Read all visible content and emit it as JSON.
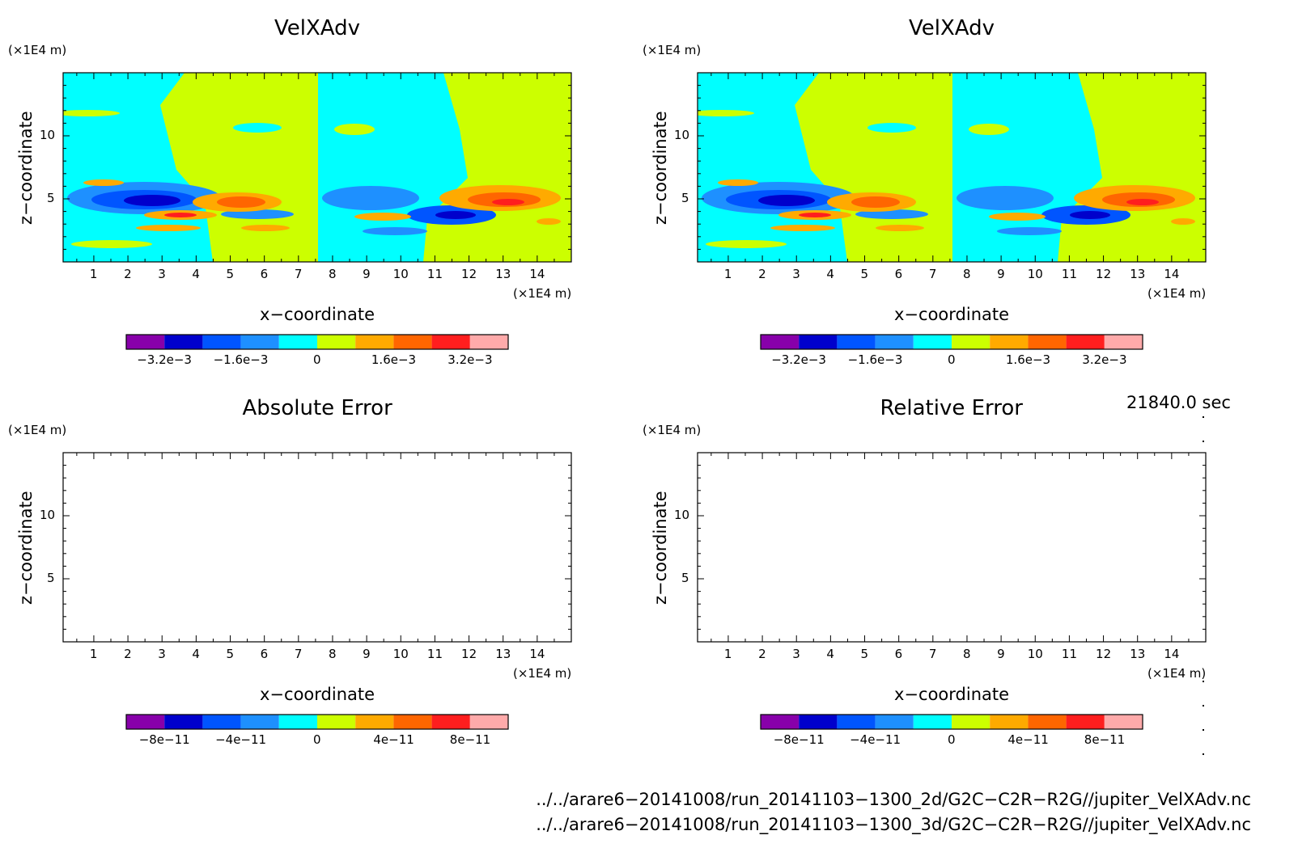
{
  "colorbar_colors": [
    "#8800aa",
    "#0000cc",
    "#0055ff",
    "#1e90ff",
    "#00ffff",
    "#ccff00",
    "#ffaa00",
    "#ff6600",
    "#ff1e1e",
    "#ffaaaa"
  ],
  "panels": [
    {
      "title": "VelXAdv",
      "z_unit": "(×1E4 m)",
      "x_unit": "(×1E4 m)",
      "xlabel": "x−coordinate",
      "ylabel": "z−coordinate",
      "x_ticks": [
        "1",
        "2",
        "3",
        "4",
        "5",
        "6",
        "7",
        "8",
        "9",
        "10",
        "11",
        "12",
        "13",
        "14"
      ],
      "y_ticks": [
        "5",
        "10"
      ],
      "cbar_ticks": [
        "−3.2e−3",
        "−1.6e−3",
        "0",
        "1.6e−3",
        "3.2e−3"
      ],
      "filled": true
    },
    {
      "title": "VelXAdv",
      "z_unit": "(×1E4 m)",
      "x_unit": "(×1E4 m)",
      "xlabel": "x−coordinate",
      "ylabel": "z−coordinate",
      "x_ticks": [
        "1",
        "2",
        "3",
        "4",
        "5",
        "6",
        "7",
        "8",
        "9",
        "10",
        "11",
        "12",
        "13",
        "14"
      ],
      "y_ticks": [
        "5",
        "10"
      ],
      "cbar_ticks": [
        "−3.2e−3",
        "−1.6e−3",
        "0",
        "1.6e−3",
        "3.2e−3"
      ],
      "filled": true
    },
    {
      "title": "Absolute Error",
      "z_unit": "(×1E4 m)",
      "x_unit": "(×1E4 m)",
      "xlabel": "x−coordinate",
      "ylabel": "z−coordinate",
      "x_ticks": [
        "1",
        "2",
        "3",
        "4",
        "5",
        "6",
        "7",
        "8",
        "9",
        "10",
        "11",
        "12",
        "13",
        "14"
      ],
      "y_ticks": [
        "5",
        "10"
      ],
      "cbar_ticks": [
        "−8e−11",
        "−4e−11",
        "0",
        "4e−11",
        "8e−11"
      ],
      "filled": false
    },
    {
      "title": "Relative Error",
      "z_unit": "(×1E4 m)",
      "x_unit": "(×1E4 m)",
      "xlabel": "x−coordinate",
      "ylabel": "z−coordinate",
      "x_ticks": [
        "1",
        "2",
        "3",
        "4",
        "5",
        "6",
        "7",
        "8",
        "9",
        "10",
        "11",
        "12",
        "13",
        "14"
      ],
      "y_ticks": [
        "5",
        "10"
      ],
      "cbar_ticks": [
        "−8e−11",
        "−4e−11",
        "0",
        "4e−11",
        "8e−11"
      ],
      "filled": false
    }
  ],
  "time_label": "21840.0 sec",
  "file_paths": [
    "../../arare6−20141008/run_20141103−1300_2d/G2C−C2R−R2G//jupiter_VelXAdv.nc",
    "../../arare6−20141008/run_20141103−1300_3d/G2C−C2R−R2G//jupiter_VelXAdv.nc"
  ],
  "chart_data": [
    {
      "type": "heatmap",
      "title": "VelXAdv",
      "xlabel": "x−coordinate",
      "ylabel": "z−coordinate",
      "x_unit": "(×1E4 m)",
      "z_unit": "(×1E4 m)",
      "xlim": [
        0.1,
        15.0
      ],
      "ylim": [
        0.0,
        15.0
      ],
      "colorbar_levels": [
        -0.004,
        -0.0032,
        -0.0024,
        -0.0016,
        -0.0008,
        0,
        0.0008,
        0.0016,
        0.0024,
        0.0032,
        0.004
      ]
    },
    {
      "type": "heatmap",
      "title": "VelXAdv",
      "xlabel": "x−coordinate",
      "ylabel": "z−coordinate",
      "x_unit": "(×1E4 m)",
      "z_unit": "(×1E4 m)",
      "xlim": [
        0.1,
        15.0
      ],
      "ylim": [
        0.0,
        15.0
      ],
      "colorbar_levels": [
        -0.004,
        -0.0032,
        -0.0024,
        -0.0016,
        -0.0008,
        0,
        0.0008,
        0.0016,
        0.0024,
        0.0032,
        0.004
      ]
    },
    {
      "type": "heatmap",
      "title": "Absolute Error",
      "xlabel": "x−coordinate",
      "ylabel": "z−coordinate",
      "x_unit": "(×1E4 m)",
      "z_unit": "(×1E4 m)",
      "xlim": [
        0.1,
        15.0
      ],
      "ylim": [
        0.0,
        15.0
      ],
      "values": "none",
      "colorbar_levels": [
        -1e-10,
        -8e-11,
        -6e-11,
        -4e-11,
        -2e-11,
        0,
        2e-11,
        4e-11,
        6e-11,
        8e-11,
        1e-10
      ]
    },
    {
      "type": "heatmap",
      "title": "Relative Error",
      "xlabel": "x−coordinate",
      "ylabel": "z−coordinate",
      "x_unit": "(×1E4 m)",
      "z_unit": "(×1E4 m)",
      "xlim": [
        0.1,
        15.0
      ],
      "ylim": [
        0.0,
        15.0
      ],
      "values": "none",
      "colorbar_levels": [
        -1e-10,
        -8e-11,
        -6e-11,
        -4e-11,
        -2e-11,
        0,
        2e-11,
        4e-11,
        6e-11,
        8e-11,
        1e-10
      ]
    }
  ]
}
